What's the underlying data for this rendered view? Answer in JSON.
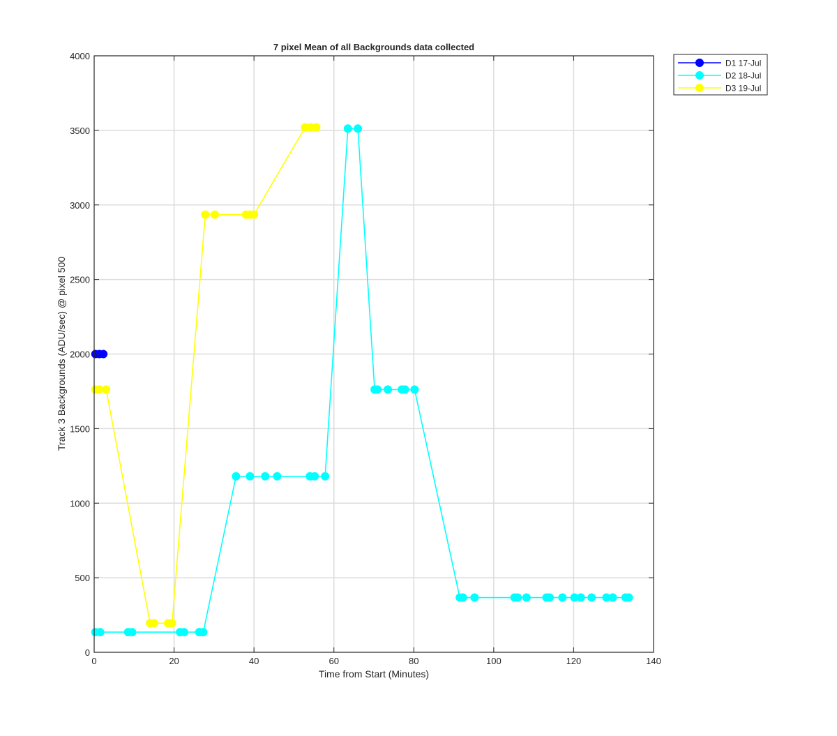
{
  "chart_data": {
    "type": "line",
    "title": "7 pixel Mean of all Backgrounds data collected",
    "xlabel": "Time from Start (Minutes)",
    "ylabel": "Track 3 Backgrounds (ADU/sec) @ pixel 500",
    "xlim": [
      0,
      140
    ],
    "ylim": [
      0,
      4000
    ],
    "xticks": [
      0,
      20,
      40,
      60,
      80,
      100,
      120,
      140
    ],
    "yticks": [
      0,
      500,
      1000,
      1500,
      2000,
      2500,
      3000,
      3500,
      4000
    ],
    "grid": true,
    "legend_position": "outside-top-right",
    "series": [
      {
        "name": "D1 17-Jul",
        "color": "#0000ff",
        "x": [
          0.3,
          1.3,
          2.3
        ],
        "y": [
          2000,
          2000,
          2000
        ]
      },
      {
        "name": "D2 18-Jul",
        "color": "#00ffff",
        "x": [
          0.3,
          1.5,
          8.5,
          9.5,
          21.5,
          22.5,
          26.3,
          27.3,
          35.5,
          39.0,
          42.8,
          45.8,
          54.0,
          55.2,
          57.8,
          63.5,
          66.0,
          70.2,
          70.9,
          73.5,
          77.0,
          77.8,
          80.2,
          91.5,
          92.3,
          95.2,
          105.2,
          106.0,
          108.2,
          113.2,
          114.0,
          117.2,
          120.2,
          121.8,
          124.5,
          128.2,
          129.8,
          133.0,
          133.8
        ],
        "y": [
          135,
          135,
          135,
          135,
          135,
          135,
          135,
          135,
          1180,
          1180,
          1180,
          1180,
          1180,
          1180,
          1180,
          3512,
          3512,
          1762,
          1762,
          1762,
          1762,
          1762,
          1762,
          367,
          367,
          367,
          367,
          367,
          367,
          367,
          367,
          367,
          367,
          367,
          367,
          367,
          367,
          367,
          367
        ]
      },
      {
        "name": "D3 19-Jul",
        "color": "#ffff00",
        "x": [
          0.3,
          1.3,
          3.0,
          14.0,
          15.0,
          18.5,
          19.5,
          27.8,
          30.2,
          38.0,
          39.0,
          40.0,
          52.8,
          54.2,
          55.6
        ],
        "y": [
          1762,
          1762,
          1762,
          195,
          195,
          195,
          195,
          2935,
          2935,
          2935,
          2935,
          2935,
          3520,
          3520,
          3520
        ]
      }
    ]
  }
}
